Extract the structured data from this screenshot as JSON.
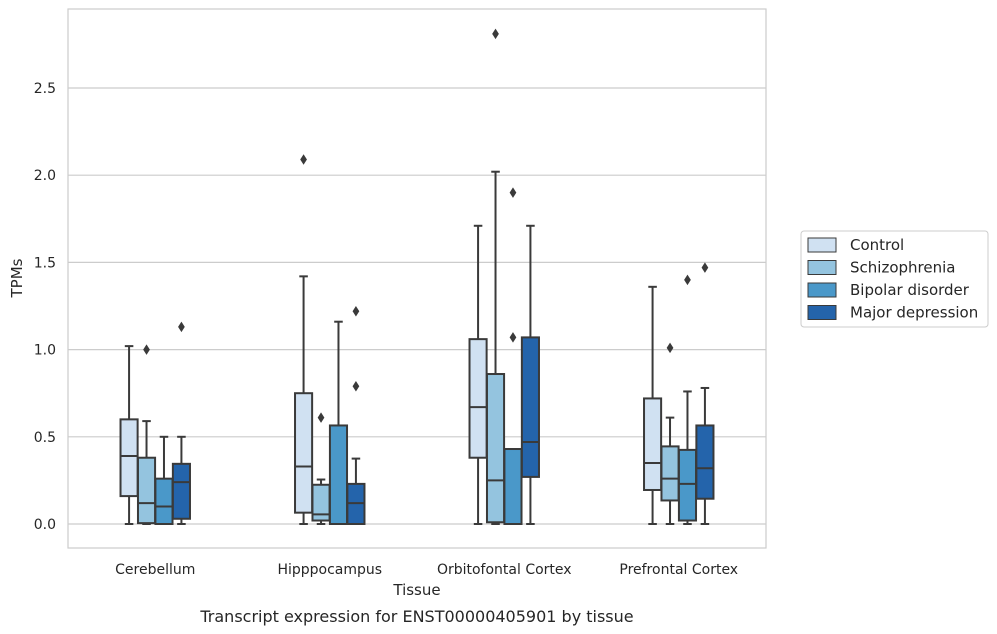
{
  "chart_data": {
    "type": "box",
    "xlabel": "Tissue",
    "ylabel": "TPMs",
    "caption": "Transcript expression for ENST00000405901 by tissue",
    "ylim": [
      -0.14,
      2.96
    ],
    "yticks": [
      0.0,
      0.5,
      1.0,
      1.5,
      2.0,
      2.5
    ],
    "ytick_labels": [
      "0.0",
      "0.5",
      "1.0",
      "1.5",
      "2.0",
      "2.5"
    ],
    "categories": [
      "Cerebellum",
      "Hipppocampus",
      "Orbitofontal Cortex",
      "Prefrontal Cortex"
    ],
    "grid": "horizontal",
    "legend_position": "right",
    "series": [
      {
        "name": "Control",
        "color": "#d0e1f2",
        "boxes": [
          {
            "min": 0.0,
            "q1": 0.16,
            "median": 0.39,
            "q3": 0.6,
            "max": 1.02,
            "outliers": []
          },
          {
            "min": 0.0,
            "q1": 0.065,
            "median": 0.33,
            "q3": 0.75,
            "max": 1.42,
            "outliers": [
              2.09
            ]
          },
          {
            "min": 0.0,
            "q1": 0.38,
            "median": 0.67,
            "q3": 1.06,
            "max": 1.71,
            "outliers": []
          },
          {
            "min": 0.0,
            "q1": 0.195,
            "median": 0.35,
            "q3": 0.72,
            "max": 1.36,
            "outliers": []
          }
        ]
      },
      {
        "name": "Schizophrenia",
        "color": "#94c4df",
        "boxes": [
          {
            "min": 0.0,
            "q1": 0.005,
            "median": 0.12,
            "q3": 0.38,
            "max": 0.59,
            "outliers": [
              1.0
            ]
          },
          {
            "min": 0.0,
            "q1": 0.02,
            "median": 0.055,
            "q3": 0.225,
            "max": 0.255,
            "outliers": [
              0.61
            ]
          },
          {
            "min": 0.0,
            "q1": 0.01,
            "median": 0.25,
            "q3": 0.86,
            "max": 2.02,
            "outliers": [
              2.81
            ]
          },
          {
            "min": 0.0,
            "q1": 0.135,
            "median": 0.26,
            "q3": 0.445,
            "max": 0.61,
            "outliers": [
              1.01
            ]
          }
        ]
      },
      {
        "name": "Bipolar disorder",
        "color": "#4a98c9",
        "boxes": [
          {
            "min": 0.0,
            "q1": 0.0,
            "median": 0.1,
            "q3": 0.26,
            "max": 0.5,
            "outliers": []
          },
          {
            "min": 0.0,
            "q1": 0.0,
            "median": 0.0,
            "q3": 0.565,
            "max": 1.16,
            "outliers": []
          },
          {
            "min": 0.0,
            "q1": 0.0,
            "median": 0.0,
            "q3": 0.43,
            "max": 0.43,
            "outliers": [
              1.07,
              1.9
            ]
          },
          {
            "min": 0.0,
            "q1": 0.02,
            "median": 0.23,
            "q3": 0.425,
            "max": 0.76,
            "outliers": [
              1.4
            ]
          }
        ]
      },
      {
        "name": "Major depression",
        "color": "#2464ab",
        "boxes": [
          {
            "min": 0.0,
            "q1": 0.03,
            "median": 0.24,
            "q3": 0.345,
            "max": 0.5,
            "outliers": [
              1.13
            ]
          },
          {
            "min": 0.0,
            "q1": 0.0,
            "median": 0.12,
            "q3": 0.23,
            "max": 0.375,
            "outliers": [
              0.79,
              1.22
            ]
          },
          {
            "min": 0.0,
            "q1": 0.27,
            "median": 0.47,
            "q3": 1.07,
            "max": 1.71,
            "outliers": []
          },
          {
            "min": 0.0,
            "q1": 0.145,
            "median": 0.32,
            "q3": 0.565,
            "max": 0.78,
            "outliers": [
              1.47
            ]
          }
        ]
      }
    ]
  }
}
